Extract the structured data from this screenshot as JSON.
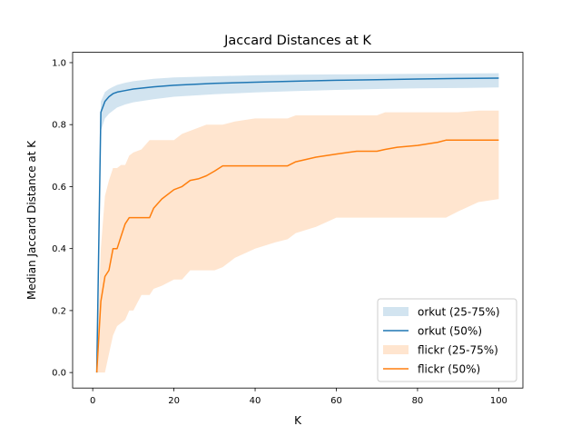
{
  "chart_data": {
    "type": "line",
    "title": "Jaccard Distances at K",
    "xlabel": "K",
    "ylabel": "Median Jaccard Distance at K",
    "xlim": [
      -4.95,
      105.95
    ],
    "ylim": [
      -0.05,
      1.0333
    ],
    "xticks": [
      0,
      20,
      40,
      60,
      80,
      100
    ],
    "xtick_labels": [
      "0",
      "20",
      "40",
      "60",
      "80",
      "100"
    ],
    "yticks": [
      0.0,
      0.2,
      0.4,
      0.6,
      0.8,
      1.0
    ],
    "ytick_labels": [
      "0.0",
      "0.2",
      "0.4",
      "0.6",
      "0.8",
      "1.0"
    ],
    "grid": false,
    "legend_location": "lower-right",
    "legend": [
      {
        "label": "orkut (25-75%)",
        "kind": "band",
        "color": "#1f77b4"
      },
      {
        "label": "orkut (50%)",
        "kind": "line",
        "color": "#1f77b4"
      },
      {
        "label": "flickr (25-75%)",
        "kind": "band",
        "color": "#ff7f0e"
      },
      {
        "label": "flickr (50%)",
        "kind": "line",
        "color": "#ff7f0e"
      }
    ],
    "series": [
      {
        "name": "orkut",
        "color": "#1f77b4",
        "x": [
          1,
          2,
          3,
          4,
          5,
          6,
          8,
          10,
          15,
          20,
          30,
          40,
          50,
          60,
          70,
          80,
          90,
          100
        ],
        "median": [
          0.0,
          0.84,
          0.875,
          0.89,
          0.9,
          0.905,
          0.91,
          0.915,
          0.922,
          0.927,
          0.933,
          0.937,
          0.94,
          0.943,
          0.945,
          0.947,
          0.949,
          0.95
        ],
        "q25": [
          0.0,
          0.78,
          0.82,
          0.835,
          0.845,
          0.855,
          0.865,
          0.872,
          0.882,
          0.89,
          0.898,
          0.904,
          0.908,
          0.912,
          0.915,
          0.917,
          0.918,
          0.92
        ],
        "q75": [
          0.05,
          0.875,
          0.905,
          0.915,
          0.922,
          0.928,
          0.935,
          0.94,
          0.948,
          0.952,
          0.956,
          0.959,
          0.961,
          0.962,
          0.963,
          0.964,
          0.965,
          0.966
        ]
      },
      {
        "name": "flickr",
        "color": "#ff7f0e",
        "x": [
          1,
          2,
          3,
          4,
          5,
          6,
          7,
          8,
          9,
          10,
          12,
          14,
          15,
          17,
          20,
          22,
          24,
          26,
          28,
          30,
          32,
          35,
          40,
          45,
          48,
          50,
          55,
          60,
          65,
          70,
          72,
          75,
          80,
          85,
          87,
          90,
          95,
          100
        ],
        "median": [
          0.0,
          0.23,
          0.31,
          0.33,
          0.4,
          0.4,
          0.44,
          0.48,
          0.5,
          0.5,
          0.5,
          0.5,
          0.53,
          0.56,
          0.59,
          0.6,
          0.62,
          0.625,
          0.635,
          0.65,
          0.667,
          0.667,
          0.667,
          0.667,
          0.667,
          0.68,
          0.695,
          0.705,
          0.714,
          0.714,
          0.72,
          0.727,
          0.733,
          0.743,
          0.75,
          0.75,
          0.75,
          0.75
        ],
        "q25": [
          0.0,
          0.0,
          0.0,
          0.06,
          0.12,
          0.15,
          0.16,
          0.17,
          0.2,
          0.2,
          0.25,
          0.25,
          0.27,
          0.28,
          0.3,
          0.3,
          0.33,
          0.33,
          0.33,
          0.33,
          0.34,
          0.37,
          0.4,
          0.42,
          0.43,
          0.45,
          0.47,
          0.5,
          0.5,
          0.5,
          0.5,
          0.5,
          0.5,
          0.5,
          0.5,
          0.52,
          0.55,
          0.56
        ],
        "q75": [
          0.05,
          0.4,
          0.57,
          0.62,
          0.66,
          0.66,
          0.67,
          0.67,
          0.7,
          0.71,
          0.72,
          0.75,
          0.75,
          0.75,
          0.75,
          0.77,
          0.78,
          0.79,
          0.8,
          0.8,
          0.8,
          0.81,
          0.82,
          0.82,
          0.82,
          0.83,
          0.83,
          0.83,
          0.83,
          0.83,
          0.84,
          0.84,
          0.84,
          0.84,
          0.84,
          0.84,
          0.845,
          0.845
        ]
      }
    ]
  }
}
